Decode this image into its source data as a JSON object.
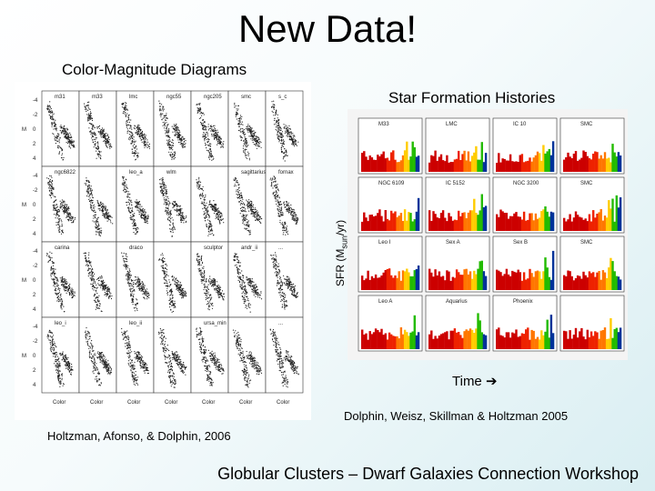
{
  "slide": {
    "title": "New Data!",
    "footer": "Globular Clusters – Dwarf Galaxies Connection Workshop"
  },
  "cmd": {
    "heading": "Color-Magnitude Diagrams",
    "citation": "Holtzman, Afonso, & Dolphin, 2006",
    "rows": [
      [
        "m31",
        "m33",
        "lmc",
        "ngc55",
        "ngc205",
        "smc",
        "s_c"
      ],
      [
        "ngc6822",
        "",
        "leo_a",
        "wlm",
        "",
        "sagittarius",
        "fornax"
      ],
      [
        "carina",
        "",
        "draco",
        "",
        "sculptor",
        "andr_ii",
        "..."
      ],
      [
        "leo_i",
        "",
        "leo_ii",
        "",
        "ursa_min",
        "",
        "..."
      ]
    ],
    "x_axis_label": "Color",
    "y_axis_label": "M"
  },
  "sfh": {
    "heading": "Star Formation Histories",
    "y_axis_label": "SFR (M",
    "y_axis_sub": "sun",
    "y_axis_tail": "/yr)",
    "x_axis_label": "Time",
    "arrow": "➔",
    "citation": "Dolphin, Weisz, Skillman & Holtzman 2005",
    "panels": [
      [
        "M33",
        "LMC",
        "IC 10",
        "SMC"
      ],
      [
        "NGC 6109",
        "IC 5152",
        "NGC 3200",
        "SMC"
      ],
      [
        "Leo I",
        "Sex A",
        "Sex B",
        "SMC"
      ],
      [
        "Leo A",
        "Aquarius",
        "Phoenix",
        ""
      ]
    ],
    "bar_colors": [
      "#cc0000",
      "#ee2200",
      "#ff7700",
      "#ffcc00",
      "#22bb00",
      "#003399"
    ]
  }
}
